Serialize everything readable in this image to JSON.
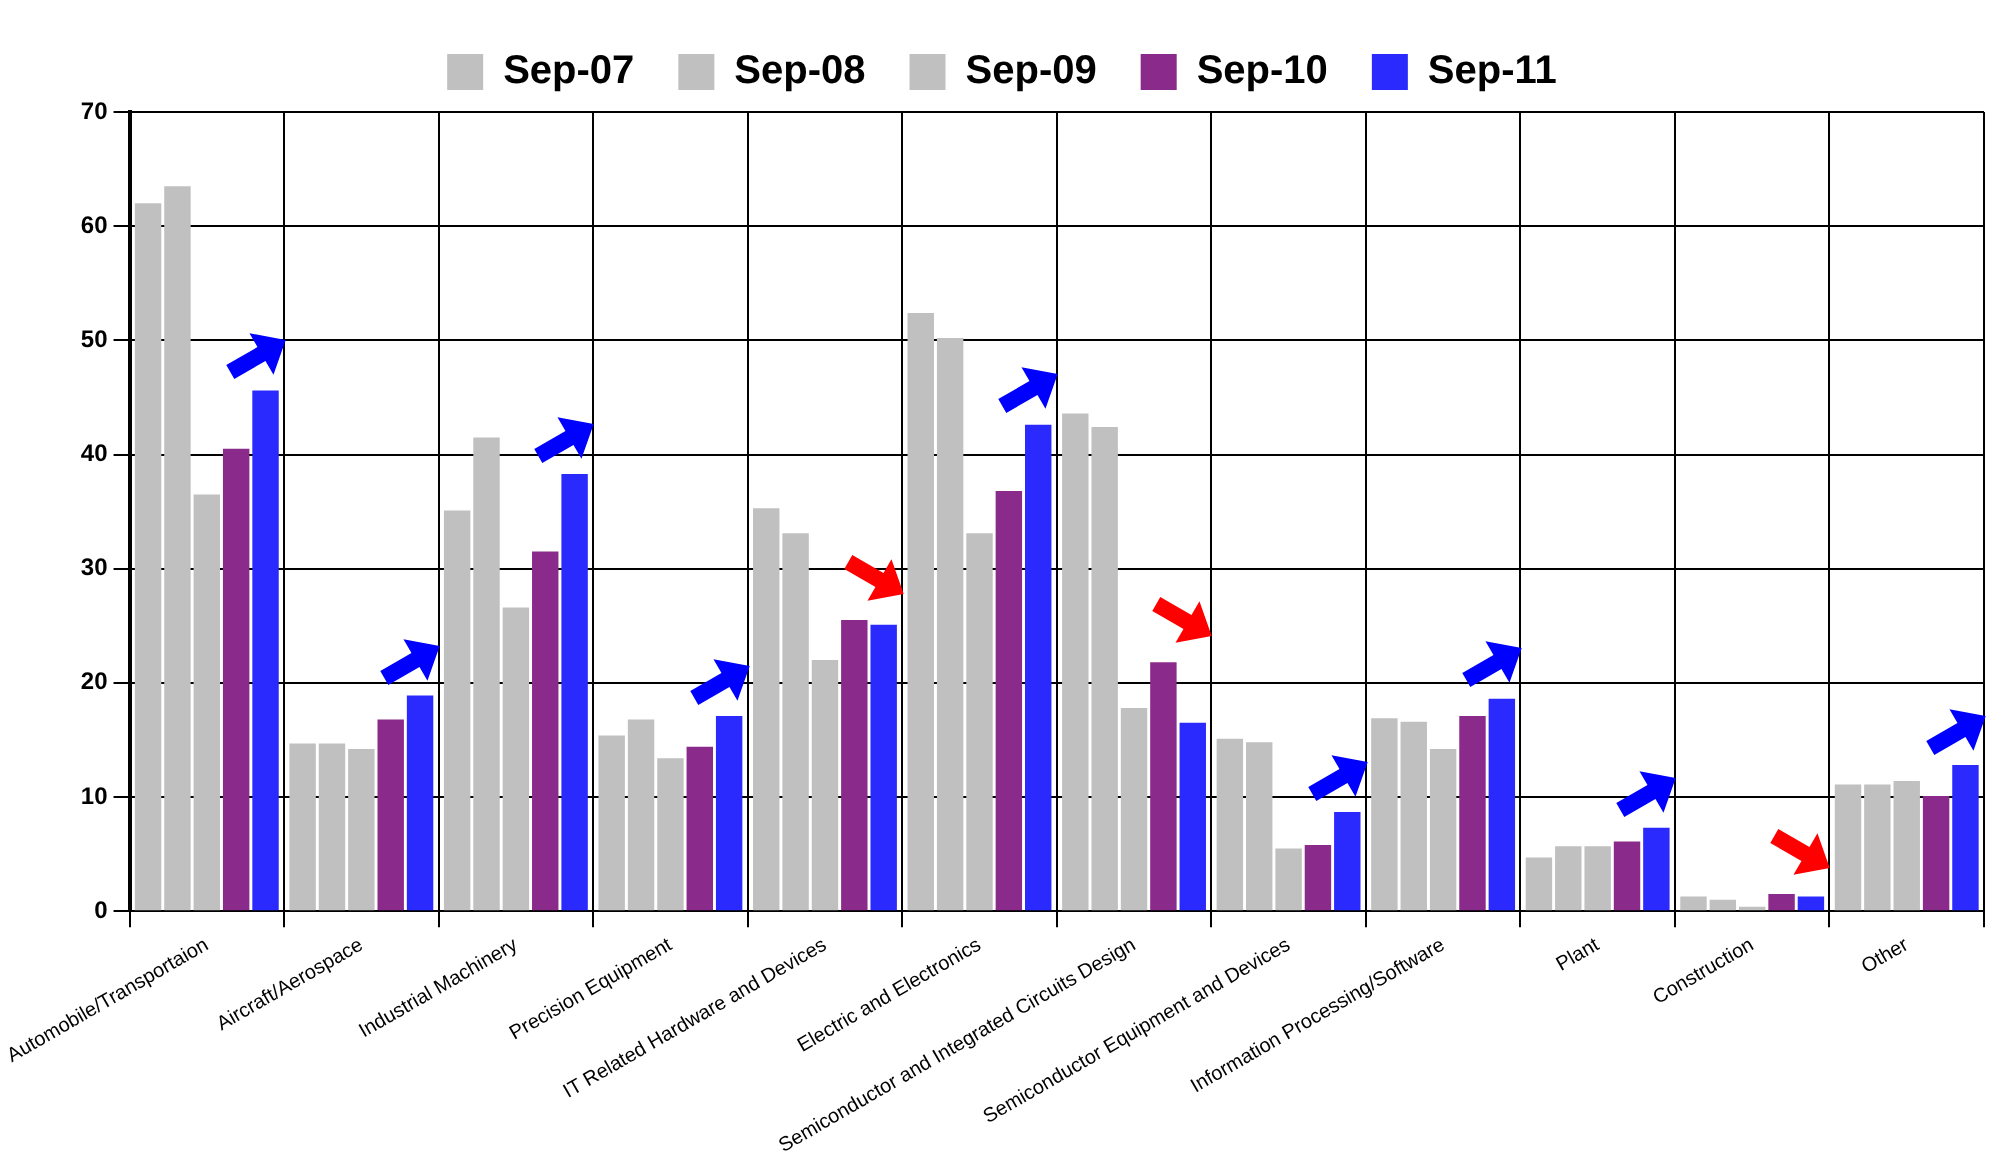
{
  "chart_data": {
    "type": "bar",
    "categories": [
      "Automobile/Transportaion",
      "Aircraft/Aerospace",
      "Industrial Machinery",
      "Precision Equipment",
      "IT Related Hardware and Devices",
      "Electric and Electronics",
      "Semiconductor and Integrated Circuits Design",
      "Semiconductor Equipment and Devices",
      "Information Processing/Software",
      "Plant",
      "Construction",
      "Other"
    ],
    "series": [
      {
        "name": "Sep-07",
        "color": "#c0c0c0",
        "values": [
          62,
          14.7,
          35.1,
          15.4,
          35.3,
          52.4,
          43.6,
          15.1,
          16.9,
          4.7,
          1.3,
          11.1
        ]
      },
      {
        "name": "Sep-08",
        "color": "#c0c0c0",
        "values": [
          63.5,
          14.7,
          41.5,
          16.8,
          33.1,
          50.2,
          42.4,
          14.8,
          16.6,
          5.7,
          1.0,
          11.1
        ]
      },
      {
        "name": "Sep-09",
        "color": "#c0c0c0",
        "values": [
          36.5,
          14.2,
          26.6,
          13.4,
          22,
          33.1,
          17.8,
          5.5,
          14.2,
          5.7,
          0.4,
          11.4
        ]
      },
      {
        "name": "Sep-10",
        "color": "#8a2a8a",
        "values": [
          40.5,
          16.8,
          31.5,
          14.4,
          25.5,
          36.8,
          21.8,
          5.8,
          17.1,
          6.1,
          1.5,
          10.1
        ]
      },
      {
        "name": "Sep-11",
        "color": "#2a2aff",
        "values": [
          45.6,
          18.9,
          38.3,
          17.1,
          25.1,
          42.6,
          16.5,
          8.7,
          18.6,
          7.3,
          1.3,
          12.8
        ]
      }
    ],
    "ylim": [
      0,
      70
    ],
    "yticks": [
      0,
      10,
      20,
      30,
      40,
      50,
      60,
      70
    ],
    "grid": true,
    "legend": "top"
  }
}
